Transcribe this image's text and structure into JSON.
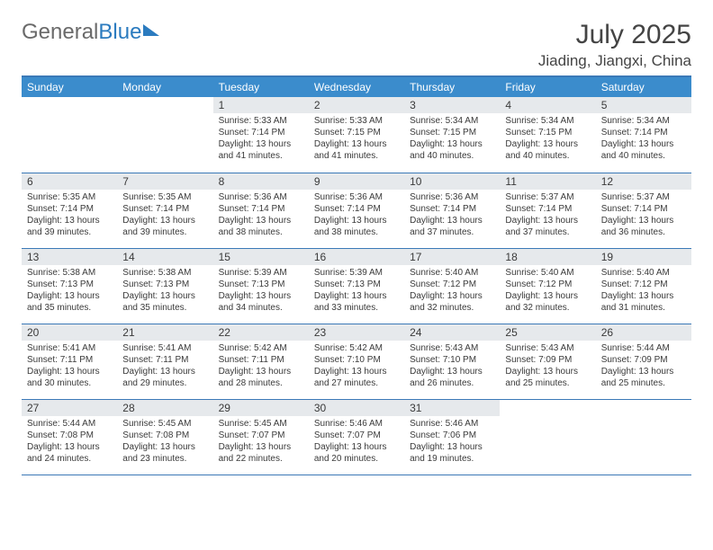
{
  "logo": {
    "part1": "General",
    "part2": "Blue"
  },
  "title": "July 2025",
  "location": "Jiading, Jiangxi, China",
  "colors": {
    "header_bg": "#3b8ccc",
    "rule": "#3b79b7",
    "daynum_bg": "#e6e9ec",
    "text": "#3a3a3a"
  },
  "weekdays": [
    "Sunday",
    "Monday",
    "Tuesday",
    "Wednesday",
    "Thursday",
    "Friday",
    "Saturday"
  ],
  "firstWeekday": 2,
  "days": [
    {
      "n": 1,
      "sr": "5:33 AM",
      "ss": "7:14 PM",
      "dl": "13 hours and 41 minutes."
    },
    {
      "n": 2,
      "sr": "5:33 AM",
      "ss": "7:15 PM",
      "dl": "13 hours and 41 minutes."
    },
    {
      "n": 3,
      "sr": "5:34 AM",
      "ss": "7:15 PM",
      "dl": "13 hours and 40 minutes."
    },
    {
      "n": 4,
      "sr": "5:34 AM",
      "ss": "7:15 PM",
      "dl": "13 hours and 40 minutes."
    },
    {
      "n": 5,
      "sr": "5:34 AM",
      "ss": "7:14 PM",
      "dl": "13 hours and 40 minutes."
    },
    {
      "n": 6,
      "sr": "5:35 AM",
      "ss": "7:14 PM",
      "dl": "13 hours and 39 minutes."
    },
    {
      "n": 7,
      "sr": "5:35 AM",
      "ss": "7:14 PM",
      "dl": "13 hours and 39 minutes."
    },
    {
      "n": 8,
      "sr": "5:36 AM",
      "ss": "7:14 PM",
      "dl": "13 hours and 38 minutes."
    },
    {
      "n": 9,
      "sr": "5:36 AM",
      "ss": "7:14 PM",
      "dl": "13 hours and 38 minutes."
    },
    {
      "n": 10,
      "sr": "5:36 AM",
      "ss": "7:14 PM",
      "dl": "13 hours and 37 minutes."
    },
    {
      "n": 11,
      "sr": "5:37 AM",
      "ss": "7:14 PM",
      "dl": "13 hours and 37 minutes."
    },
    {
      "n": 12,
      "sr": "5:37 AM",
      "ss": "7:14 PM",
      "dl": "13 hours and 36 minutes."
    },
    {
      "n": 13,
      "sr": "5:38 AM",
      "ss": "7:13 PM",
      "dl": "13 hours and 35 minutes."
    },
    {
      "n": 14,
      "sr": "5:38 AM",
      "ss": "7:13 PM",
      "dl": "13 hours and 35 minutes."
    },
    {
      "n": 15,
      "sr": "5:39 AM",
      "ss": "7:13 PM",
      "dl": "13 hours and 34 minutes."
    },
    {
      "n": 16,
      "sr": "5:39 AM",
      "ss": "7:13 PM",
      "dl": "13 hours and 33 minutes."
    },
    {
      "n": 17,
      "sr": "5:40 AM",
      "ss": "7:12 PM",
      "dl": "13 hours and 32 minutes."
    },
    {
      "n": 18,
      "sr": "5:40 AM",
      "ss": "7:12 PM",
      "dl": "13 hours and 32 minutes."
    },
    {
      "n": 19,
      "sr": "5:40 AM",
      "ss": "7:12 PM",
      "dl": "13 hours and 31 minutes."
    },
    {
      "n": 20,
      "sr": "5:41 AM",
      "ss": "7:11 PM",
      "dl": "13 hours and 30 minutes."
    },
    {
      "n": 21,
      "sr": "5:41 AM",
      "ss": "7:11 PM",
      "dl": "13 hours and 29 minutes."
    },
    {
      "n": 22,
      "sr": "5:42 AM",
      "ss": "7:11 PM",
      "dl": "13 hours and 28 minutes."
    },
    {
      "n": 23,
      "sr": "5:42 AM",
      "ss": "7:10 PM",
      "dl": "13 hours and 27 minutes."
    },
    {
      "n": 24,
      "sr": "5:43 AM",
      "ss": "7:10 PM",
      "dl": "13 hours and 26 minutes."
    },
    {
      "n": 25,
      "sr": "5:43 AM",
      "ss": "7:09 PM",
      "dl": "13 hours and 25 minutes."
    },
    {
      "n": 26,
      "sr": "5:44 AM",
      "ss": "7:09 PM",
      "dl": "13 hours and 25 minutes."
    },
    {
      "n": 27,
      "sr": "5:44 AM",
      "ss": "7:08 PM",
      "dl": "13 hours and 24 minutes."
    },
    {
      "n": 28,
      "sr": "5:45 AM",
      "ss": "7:08 PM",
      "dl": "13 hours and 23 minutes."
    },
    {
      "n": 29,
      "sr": "5:45 AM",
      "ss": "7:07 PM",
      "dl": "13 hours and 22 minutes."
    },
    {
      "n": 30,
      "sr": "5:46 AM",
      "ss": "7:07 PM",
      "dl": "13 hours and 20 minutes."
    },
    {
      "n": 31,
      "sr": "5:46 AM",
      "ss": "7:06 PM",
      "dl": "13 hours and 19 minutes."
    }
  ],
  "labels": {
    "sunrise": "Sunrise:",
    "sunset": "Sunset:",
    "daylight": "Daylight:"
  }
}
